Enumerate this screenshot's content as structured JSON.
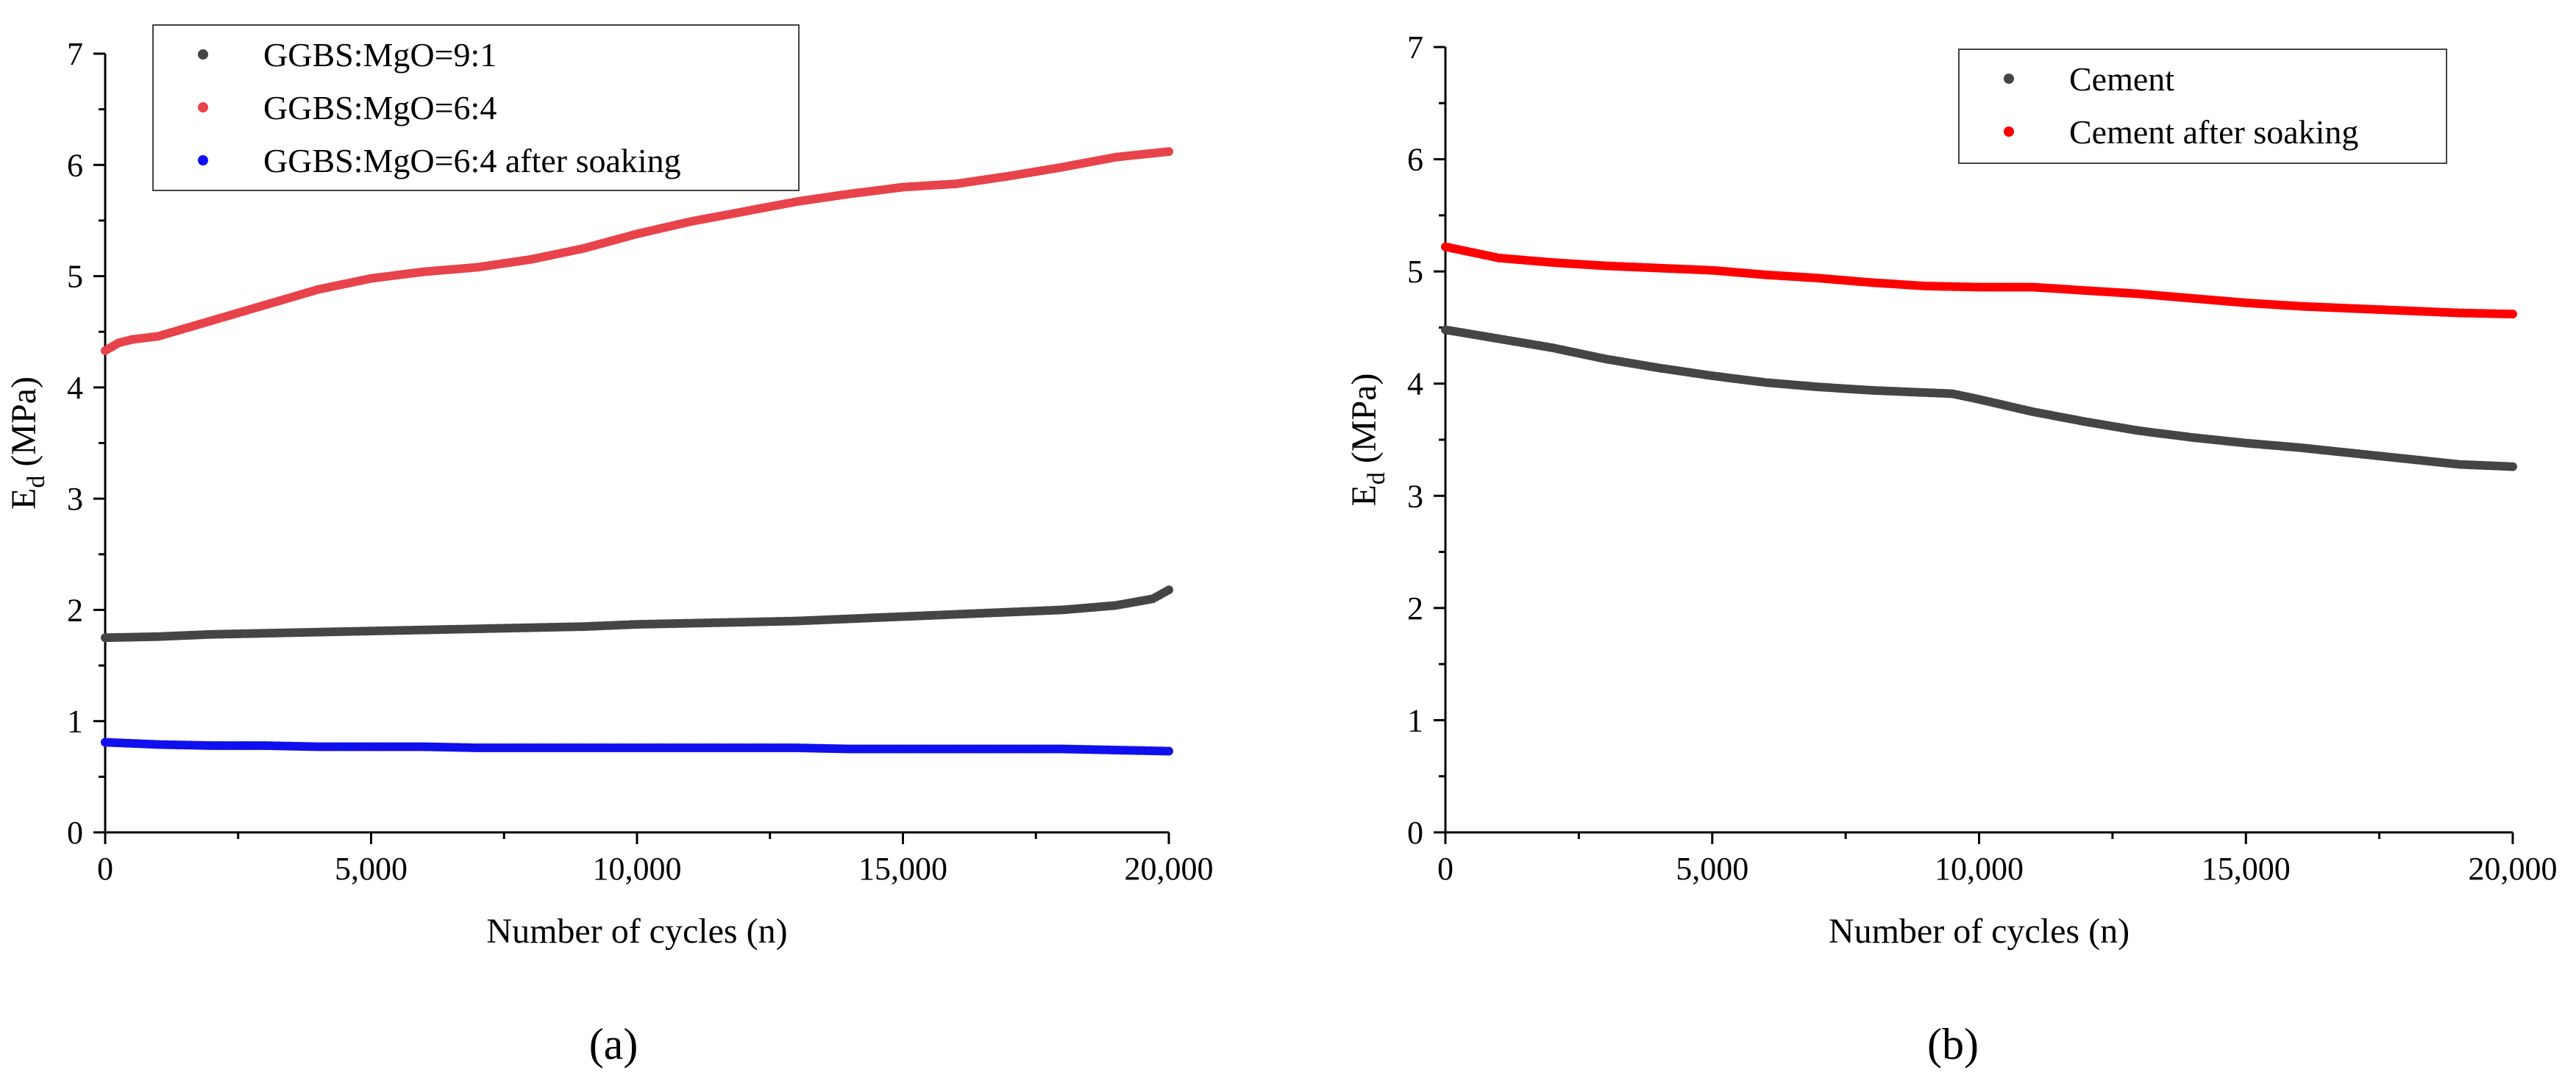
{
  "figure": {
    "panel_labels": [
      "(a)",
      "(b)"
    ]
  },
  "chart_data": [
    {
      "id": "a",
      "type": "scatter",
      "panel_label": "(a)",
      "xlabel": "Number of cycles (n)",
      "ylabel": "E",
      "ylabel_sub": "d",
      "ylabel_unit": " (MPa)",
      "xlim": [
        0,
        20000
      ],
      "ylim": [
        0,
        7
      ],
      "xticks": [
        0,
        5000,
        10000,
        15000,
        20000
      ],
      "xtick_labels": [
        "0",
        "5,000",
        "10,000",
        "15,000",
        "20,000"
      ],
      "yticks": [
        0,
        1,
        2,
        3,
        4,
        5,
        6,
        7
      ],
      "ytick_labels": [
        "0",
        "1",
        "2",
        "3",
        "4",
        "5",
        "6",
        "7"
      ],
      "legend_position": "top-left",
      "grid": false,
      "series": [
        {
          "name": "GGBS:MgO=9:1",
          "color": "#454545",
          "points": [
            [
              0,
              1.75
            ],
            [
              1000,
              1.76
            ],
            [
              2000,
              1.78
            ],
            [
              3000,
              1.79
            ],
            [
              4000,
              1.8
            ],
            [
              5000,
              1.81
            ],
            [
              6000,
              1.82
            ],
            [
              7000,
              1.83
            ],
            [
              8000,
              1.84
            ],
            [
              9000,
              1.85
            ],
            [
              10000,
              1.87
            ],
            [
              11000,
              1.88
            ],
            [
              12000,
              1.89
            ],
            [
              13000,
              1.9
            ],
            [
              14000,
              1.92
            ],
            [
              15000,
              1.94
            ],
            [
              16000,
              1.96
            ],
            [
              17000,
              1.98
            ],
            [
              18000,
              2.0
            ],
            [
              19000,
              2.04
            ],
            [
              19700,
              2.1
            ],
            [
              20000,
              2.18
            ]
          ]
        },
        {
          "name": "GGBS:MgO=6:4",
          "color": "#e8434a",
          "points": [
            [
              0,
              4.33
            ],
            [
              250,
              4.4
            ],
            [
              500,
              4.43
            ],
            [
              1000,
              4.46
            ],
            [
              2000,
              4.6
            ],
            [
              3000,
              4.74
            ],
            [
              4000,
              4.88
            ],
            [
              5000,
              4.98
            ],
            [
              6000,
              5.04
            ],
            [
              7000,
              5.08
            ],
            [
              8000,
              5.15
            ],
            [
              9000,
              5.25
            ],
            [
              10000,
              5.38
            ],
            [
              11000,
              5.49
            ],
            [
              12000,
              5.58
            ],
            [
              13000,
              5.67
            ],
            [
              14000,
              5.74
            ],
            [
              15000,
              5.8
            ],
            [
              16000,
              5.83
            ],
            [
              17000,
              5.9
            ],
            [
              18000,
              5.98
            ],
            [
              19000,
              6.07
            ],
            [
              20000,
              6.12
            ]
          ]
        },
        {
          "name": "GGBS:MgO=6:4 after soaking",
          "color": "#1010ee",
          "points": [
            [
              0,
              0.81
            ],
            [
              1000,
              0.79
            ],
            [
              2000,
              0.78
            ],
            [
              3000,
              0.78
            ],
            [
              4000,
              0.77
            ],
            [
              5000,
              0.77
            ],
            [
              6000,
              0.77
            ],
            [
              7000,
              0.76
            ],
            [
              8000,
              0.76
            ],
            [
              9000,
              0.76
            ],
            [
              10000,
              0.76
            ],
            [
              11000,
              0.76
            ],
            [
              12000,
              0.76
            ],
            [
              13000,
              0.76
            ],
            [
              14000,
              0.75
            ],
            [
              15000,
              0.75
            ],
            [
              16000,
              0.75
            ],
            [
              17000,
              0.75
            ],
            [
              18000,
              0.75
            ],
            [
              19000,
              0.74
            ],
            [
              20000,
              0.73
            ]
          ]
        }
      ]
    },
    {
      "id": "b",
      "type": "scatter",
      "panel_label": "(b)",
      "xlabel": "Number of cycles (n)",
      "ylabel": "E",
      "ylabel_sub": "d",
      "ylabel_unit": " (MPa)",
      "xlim": [
        0,
        20000
      ],
      "ylim": [
        0,
        7
      ],
      "xticks": [
        0,
        5000,
        10000,
        15000,
        20000
      ],
      "xtick_labels": [
        "0",
        "5,000",
        "10,000",
        "15,000",
        "20,000"
      ],
      "yticks": [
        0,
        1,
        2,
        3,
        4,
        5,
        6,
        7
      ],
      "ytick_labels": [
        "0",
        "1",
        "2",
        "3",
        "4",
        "5",
        "6",
        "7"
      ],
      "legend_position": "top-right",
      "grid": false,
      "series": [
        {
          "name": "Cement",
          "color": "#454545",
          "points": [
            [
              0,
              4.48
            ],
            [
              1000,
              4.4
            ],
            [
              2000,
              4.32
            ],
            [
              3000,
              4.22
            ],
            [
              4000,
              4.14
            ],
            [
              5000,
              4.07
            ],
            [
              6000,
              4.01
            ],
            [
              7000,
              3.97
            ],
            [
              8000,
              3.94
            ],
            [
              9000,
              3.92
            ],
            [
              9500,
              3.91
            ],
            [
              10000,
              3.86
            ],
            [
              11000,
              3.75
            ],
            [
              12000,
              3.66
            ],
            [
              13000,
              3.58
            ],
            [
              14000,
              3.52
            ],
            [
              15000,
              3.47
            ],
            [
              16000,
              3.43
            ],
            [
              17000,
              3.38
            ],
            [
              18000,
              3.33
            ],
            [
              19000,
              3.28
            ],
            [
              20000,
              3.26
            ]
          ]
        },
        {
          "name": "Cement after soaking",
          "color": "#ff0000",
          "points": [
            [
              0,
              5.22
            ],
            [
              500,
              5.17
            ],
            [
              1000,
              5.12
            ],
            [
              2000,
              5.08
            ],
            [
              3000,
              5.05
            ],
            [
              4000,
              5.03
            ],
            [
              5000,
              5.01
            ],
            [
              6000,
              4.97
            ],
            [
              7000,
              4.94
            ],
            [
              8000,
              4.9
            ],
            [
              9000,
              4.87
            ],
            [
              10000,
              4.86
            ],
            [
              11000,
              4.86
            ],
            [
              12000,
              4.83
            ],
            [
              13000,
              4.8
            ],
            [
              14000,
              4.76
            ],
            [
              15000,
              4.72
            ],
            [
              16000,
              4.69
            ],
            [
              17000,
              4.67
            ],
            [
              18000,
              4.65
            ],
            [
              19000,
              4.63
            ],
            [
              20000,
              4.62
            ]
          ]
        }
      ]
    }
  ]
}
